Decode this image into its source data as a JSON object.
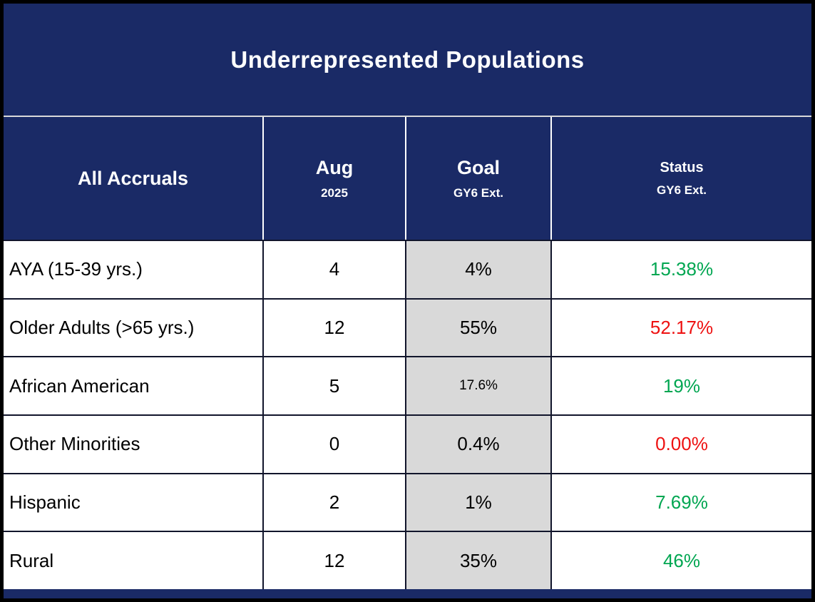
{
  "title": "Underrepresented Populations",
  "header": {
    "accruals_label": "All Accruals",
    "month": {
      "main": "Aug",
      "sub": "2025"
    },
    "goal": {
      "main": "Goal",
      "sub": "GY6 Ext."
    },
    "status": {
      "main": "Status",
      "sub": "GY6 Ext."
    }
  },
  "rows": [
    {
      "label": "AYA (15-39 yrs.)",
      "value": "4",
      "goal": "4%",
      "status": "15.38%",
      "status_color": "green"
    },
    {
      "label": "Older Adults (>65 yrs.)",
      "value": "12",
      "goal": "55%",
      "status": "52.17%",
      "status_color": "red"
    },
    {
      "label": "African American",
      "value": "5",
      "goal": "17.6%",
      "status": "19%",
      "status_color": "green"
    },
    {
      "label": "Other Minorities",
      "value": "0",
      "goal": "0.4%",
      "status": "0.00%",
      "status_color": "red"
    },
    {
      "label": "Hispanic",
      "value": "2",
      "goal": "1%",
      "status": "7.69%",
      "status_color": "green"
    },
    {
      "label": "Rural",
      "value": "12",
      "goal": "35%",
      "status": "46%",
      "status_color": "green"
    }
  ],
  "colors": {
    "navy": "#1a2a66",
    "goal_bg": "#d9d9d9",
    "green": "#00a651",
    "red": "#ee1111"
  },
  "chart_data": {
    "type": "table",
    "title": "Underrepresented Populations",
    "columns": [
      "All Accruals",
      "Aug 2025",
      "Goal GY6 Ext.",
      "Status GY6 Ext."
    ],
    "rows": [
      [
        "AYA (15-39 yrs.)",
        4,
        "4%",
        "15.38%"
      ],
      [
        "Older Adults (>65 yrs.)",
        12,
        "55%",
        "52.17%"
      ],
      [
        "African American",
        5,
        "17.6%",
        "19%"
      ],
      [
        "Other Minorities",
        0,
        "0.4%",
        "0.00%"
      ],
      [
        "Hispanic",
        2,
        "1%",
        "7.69%"
      ],
      [
        "Rural",
        12,
        "35%",
        "46%"
      ]
    ],
    "status_colors": [
      "green",
      "red",
      "green",
      "red",
      "green",
      "green"
    ]
  }
}
